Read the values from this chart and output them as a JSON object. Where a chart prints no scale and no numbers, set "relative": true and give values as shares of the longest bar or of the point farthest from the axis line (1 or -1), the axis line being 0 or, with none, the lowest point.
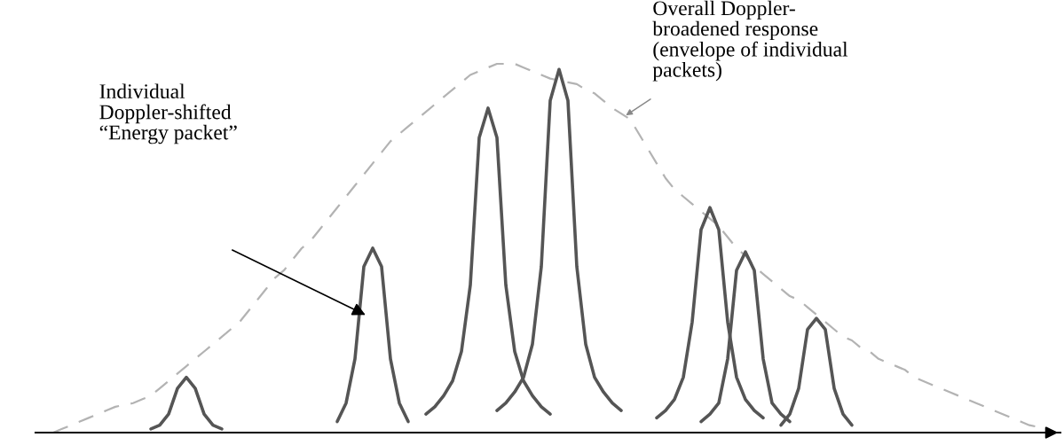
{
  "chart_data": {
    "type": "line",
    "relative": true,
    "tick_labels": false,
    "categories": [
      null,
      null,
      null,
      null,
      null,
      null,
      null,
      null,
      null,
      null,
      null,
      null,
      null,
      null,
      null,
      null,
      null,
      null,
      null,
      null,
      null,
      null,
      null,
      null,
      null,
      null,
      null,
      null,
      null,
      null,
      null,
      null,
      null,
      null,
      null,
      null,
      null,
      null,
      null,
      null,
      null,
      null,
      null,
      null,
      null,
      null,
      null,
      null,
      null,
      null,
      null,
      null,
      null,
      null,
      null,
      null,
      null,
      null,
      null,
      null,
      null,
      null,
      null,
      null,
      null,
      null,
      null,
      null,
      null,
      null,
      null,
      null,
      null,
      null,
      null,
      null,
      null,
      null,
      null,
      null,
      null,
      null,
      null,
      null,
      null,
      null,
      null,
      null,
      null,
      null,
      null,
      null,
      null,
      null,
      null,
      null,
      null,
      null,
      null,
      null,
      null,
      null,
      null,
      null,
      null,
      null,
      null,
      null,
      null,
      null,
      null,
      null,
      null,
      null
    ],
    "series": [
      {
        "color": "#b3b3b3",
        "line_style": "dashed",
        "values": [
          0.0,
          0.01,
          0.02,
          0.03,
          0.04,
          0.05,
          0.06,
          0.07,
          0.075,
          0.08,
          0.09,
          0.1,
          0.12,
          0.14,
          0.16,
          0.18,
          0.2,
          0.22,
          0.24,
          0.26,
          0.28,
          0.3,
          0.33,
          0.36,
          0.39,
          0.42,
          0.44,
          0.47,
          0.5,
          0.52,
          0.55,
          0.58,
          0.61,
          0.64,
          0.67,
          0.7,
          0.73,
          0.76,
          0.79,
          0.81,
          0.83,
          0.85,
          0.87,
          0.89,
          0.91,
          0.93,
          0.95,
          0.97,
          0.98,
          0.99,
          1.0,
          1.0,
          1.0,
          0.99,
          0.98,
          0.97,
          0.96,
          0.955,
          0.95,
          0.945,
          0.93,
          0.92,
          0.9,
          0.88,
          0.865,
          0.85,
          0.81,
          0.77,
          0.73,
          0.69,
          0.66,
          0.64,
          0.62,
          0.6,
          0.58,
          0.56,
          0.53,
          0.5,
          0.48,
          0.45,
          0.43,
          0.41,
          0.39,
          0.37,
          0.36,
          0.34,
          0.32,
          0.3,
          0.28,
          0.26,
          0.25,
          0.23,
          0.22,
          0.2,
          0.19,
          0.18,
          0.17,
          0.15,
          0.14,
          0.13,
          0.12,
          0.11,
          0.1,
          0.09,
          0.08,
          0.07,
          0.06,
          0.05,
          0.04,
          0.03,
          0.02,
          0.015,
          0.01,
          0.0
        ]
      },
      {
        "color": "#555555",
        "line_style": "solid",
        "values": [
          null,
          null,
          null,
          null,
          null,
          null,
          null,
          null,
          null,
          null,
          null,
          0.01,
          0.02,
          0.05,
          0.12,
          0.15,
          0.12,
          0.05,
          0.02,
          0.01,
          null,
          null,
          null,
          null,
          null,
          null,
          null,
          null,
          null,
          null,
          null,
          null,
          null,
          null,
          null,
          null,
          null,
          null,
          null,
          null,
          null,
          null,
          null,
          null,
          null,
          null,
          null,
          null,
          null,
          null,
          null,
          null,
          null,
          null,
          null,
          null,
          null,
          null,
          null,
          null,
          null,
          null,
          null,
          null,
          null,
          null,
          null,
          null,
          null,
          null,
          null,
          null,
          null,
          null,
          null,
          null,
          null,
          null,
          null,
          null,
          null,
          null,
          null,
          null,
          null,
          null,
          null,
          null,
          null,
          null,
          null,
          null,
          null,
          null,
          null,
          null,
          null,
          null,
          null,
          null,
          null,
          null,
          null,
          null,
          null,
          null,
          null,
          null,
          null,
          null,
          null,
          null,
          null,
          null
        ]
      },
      {
        "color": "#555555",
        "line_style": "solid",
        "values": [
          null,
          null,
          null,
          null,
          null,
          null,
          null,
          null,
          null,
          null,
          null,
          null,
          null,
          null,
          null,
          null,
          null,
          null,
          null,
          null,
          null,
          null,
          null,
          null,
          null,
          null,
          null,
          null,
          null,
          null,
          null,
          null,
          0.03,
          0.08,
          0.2,
          0.45,
          0.5,
          0.45,
          0.2,
          0.08,
          0.03,
          null,
          null,
          null,
          null,
          null,
          null,
          null,
          null,
          null,
          null,
          null,
          null,
          null,
          null,
          null,
          null,
          null,
          null,
          null,
          null,
          null,
          null,
          null,
          null,
          null,
          null,
          null,
          null,
          null,
          null,
          null,
          null,
          null,
          null,
          null,
          null,
          null,
          null,
          null,
          null,
          null,
          null,
          null,
          null,
          null,
          null,
          null,
          null,
          null,
          null,
          null,
          null,
          null,
          null,
          null,
          null,
          null,
          null,
          null,
          null,
          null,
          null,
          null,
          null,
          null,
          null,
          null,
          null,
          null,
          null,
          null,
          null,
          null
        ]
      },
      {
        "color": "#555555",
        "line_style": "solid",
        "values": [
          null,
          null,
          null,
          null,
          null,
          null,
          null,
          null,
          null,
          null,
          null,
          null,
          null,
          null,
          null,
          null,
          null,
          null,
          null,
          null,
          null,
          null,
          null,
          null,
          null,
          null,
          null,
          null,
          null,
          null,
          null,
          null,
          null,
          null,
          null,
          null,
          null,
          null,
          null,
          null,
          null,
          null,
          0.05,
          0.07,
          0.1,
          0.14,
          0.22,
          0.4,
          0.8,
          0.88,
          0.8,
          0.4,
          0.22,
          0.14,
          0.1,
          0.07,
          0.05,
          null,
          null,
          null,
          null,
          null,
          null,
          null,
          null,
          null,
          null,
          null,
          null,
          null,
          null,
          null,
          null,
          null,
          null,
          null,
          null,
          null,
          null,
          null,
          null,
          null,
          null,
          null,
          null,
          null,
          null,
          null,
          null,
          null,
          null,
          null,
          null,
          null,
          null,
          null,
          null,
          null,
          null,
          null,
          null,
          null,
          null,
          null,
          null,
          null,
          null,
          null,
          null,
          null,
          null,
          null,
          null,
          null
        ]
      },
      {
        "color": "#555555",
        "line_style": "solid",
        "values": [
          null,
          null,
          null,
          null,
          null,
          null,
          null,
          null,
          null,
          null,
          null,
          null,
          null,
          null,
          null,
          null,
          null,
          null,
          null,
          null,
          null,
          null,
          null,
          null,
          null,
          null,
          null,
          null,
          null,
          null,
          null,
          null,
          null,
          null,
          null,
          null,
          null,
          null,
          null,
          null,
          null,
          null,
          null,
          null,
          null,
          null,
          null,
          null,
          null,
          null,
          0.06,
          0.08,
          0.11,
          0.15,
          0.24,
          0.45,
          0.9,
          0.985,
          0.9,
          0.45,
          0.24,
          0.15,
          0.11,
          0.08,
          0.06,
          null,
          null,
          null,
          null,
          null,
          null,
          null,
          null,
          null,
          null,
          null,
          null,
          null,
          null,
          null,
          null,
          null,
          null,
          null,
          null,
          null,
          null,
          null,
          null,
          null,
          null,
          null,
          null,
          null,
          null,
          null,
          null,
          null,
          null,
          null,
          null,
          null,
          null,
          null,
          null,
          null,
          null,
          null,
          null,
          null,
          null,
          null,
          null,
          null
        ]
      },
      {
        "color": "#555555",
        "line_style": "solid",
        "values": [
          null,
          null,
          null,
          null,
          null,
          null,
          null,
          null,
          null,
          null,
          null,
          null,
          null,
          null,
          null,
          null,
          null,
          null,
          null,
          null,
          null,
          null,
          null,
          null,
          null,
          null,
          null,
          null,
          null,
          null,
          null,
          null,
          null,
          null,
          null,
          null,
          null,
          null,
          null,
          null,
          null,
          null,
          null,
          null,
          null,
          null,
          null,
          null,
          null,
          null,
          null,
          null,
          null,
          null,
          null,
          null,
          null,
          null,
          null,
          null,
          null,
          null,
          null,
          null,
          null,
          null,
          null,
          null,
          0.04,
          0.06,
          0.09,
          0.15,
          0.3,
          0.55,
          0.61,
          0.55,
          0.3,
          0.15,
          0.09,
          0.06,
          0.04,
          null,
          null,
          null,
          null,
          null,
          null,
          null,
          null,
          null,
          null,
          null,
          null,
          null,
          null,
          null,
          null,
          null,
          null,
          null,
          null,
          null,
          null,
          null,
          null,
          null,
          null,
          null,
          null,
          null,
          null,
          null,
          null,
          null
        ]
      },
      {
        "color": "#555555",
        "line_style": "solid",
        "values": [
          null,
          null,
          null,
          null,
          null,
          null,
          null,
          null,
          null,
          null,
          null,
          null,
          null,
          null,
          null,
          null,
          null,
          null,
          null,
          null,
          null,
          null,
          null,
          null,
          null,
          null,
          null,
          null,
          null,
          null,
          null,
          null,
          null,
          null,
          null,
          null,
          null,
          null,
          null,
          null,
          null,
          null,
          null,
          null,
          null,
          null,
          null,
          null,
          null,
          null,
          null,
          null,
          null,
          null,
          null,
          null,
          null,
          null,
          null,
          null,
          null,
          null,
          null,
          null,
          null,
          null,
          null,
          null,
          null,
          null,
          null,
          null,
          null,
          0.03,
          0.05,
          0.08,
          0.2,
          0.44,
          0.49,
          0.44,
          0.2,
          0.08,
          0.05,
          0.03,
          null,
          null,
          null,
          null,
          null,
          null,
          null,
          null,
          null,
          null,
          null,
          null,
          null,
          null,
          null,
          null,
          null,
          null,
          null,
          null,
          null,
          null,
          null,
          null,
          null,
          null,
          null,
          null,
          null,
          null
        ]
      },
      {
        "color": "#555555",
        "line_style": "solid",
        "values": [
          null,
          null,
          null,
          null,
          null,
          null,
          null,
          null,
          null,
          null,
          null,
          null,
          null,
          null,
          null,
          null,
          null,
          null,
          null,
          null,
          null,
          null,
          null,
          null,
          null,
          null,
          null,
          null,
          null,
          null,
          null,
          null,
          null,
          null,
          null,
          null,
          null,
          null,
          null,
          null,
          null,
          null,
          null,
          null,
          null,
          null,
          null,
          null,
          null,
          null,
          null,
          null,
          null,
          null,
          null,
          null,
          null,
          null,
          null,
          null,
          null,
          null,
          null,
          null,
          null,
          null,
          null,
          null,
          null,
          null,
          null,
          null,
          null,
          null,
          null,
          null,
          null,
          null,
          null,
          null,
          null,
          null,
          0.02,
          0.05,
          0.12,
          0.28,
          0.31,
          0.28,
          0.12,
          0.05,
          0.02,
          null,
          null,
          null,
          null,
          null,
          null,
          null,
          null,
          null,
          null,
          null,
          null,
          null,
          null,
          null,
          null,
          null,
          null,
          null,
          null,
          null,
          null,
          null
        ]
      }
    ],
    "annotations": [
      "Individual\nDoppler-shifted\n“Energy packet”",
      "Overall Doppler-\nbroadened response\n(envelope of individual\npackets)"
    ]
  }
}
